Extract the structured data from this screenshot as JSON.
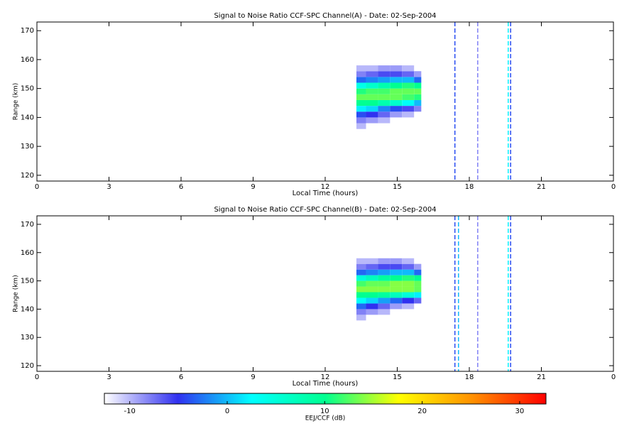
{
  "chart_data": [
    {
      "type": "heatmap",
      "title": "Signal to Noise Ratio CCF-SPC Channel(A) - Date: 02-Sep-2004",
      "xlabel": "Local Time (hours)",
      "ylabel": "Range (km)",
      "xlim": [
        0,
        24
      ],
      "xticks": [
        0,
        3,
        6,
        9,
        12,
        15,
        18,
        21,
        {
          "value": 24,
          "label": "0"
        }
      ],
      "ylim": [
        118,
        173
      ],
      "yticks": [
        120,
        130,
        140,
        150,
        160,
        170
      ],
      "xbins": [
        13.3,
        13.7,
        14.2,
        14.7,
        15.2,
        15.7,
        16.0
      ],
      "ybins": [
        136,
        138,
        140,
        142,
        144,
        146,
        148,
        150,
        152,
        154,
        156,
        158
      ],
      "z": [
        [
          -10,
          null,
          null,
          null,
          null,
          null
        ],
        [
          -8,
          -9,
          -10,
          null,
          null,
          null
        ],
        [
          -4,
          -5,
          -7,
          -9,
          -10,
          null
        ],
        [
          2,
          1,
          -2,
          -4,
          -6,
          -8
        ],
        [
          10,
          10,
          8,
          6,
          3,
          0
        ],
        [
          13,
          13,
          13,
          13,
          12,
          11
        ],
        [
          11,
          12,
          12,
          13,
          13,
          13
        ],
        [
          4,
          6,
          8,
          10,
          11,
          10
        ],
        [
          -3,
          -2,
          -1,
          0,
          0,
          -3
        ],
        [
          -8,
          -7,
          -6,
          -6,
          -7,
          -9
        ],
        [
          -10,
          -10,
          -9,
          -9,
          -10,
          null
        ]
      ],
      "streaks": {
        "x": [
          17.4,
          18.35,
          19.62,
          19.72
        ],
        "values": [
          -4,
          -8,
          2,
          -4
        ]
      }
    },
    {
      "type": "heatmap",
      "title": "Signal to Noise Ratio CCF-SPC Channel(B) - Date: 02-Sep-2004",
      "xlabel": "Local Time (hours)",
      "ylabel": "Range (km)",
      "xlim": [
        0,
        24
      ],
      "xticks": [
        0,
        3,
        6,
        9,
        12,
        15,
        18,
        21,
        {
          "value": 24,
          "label": "0"
        }
      ],
      "ylim": [
        118,
        173
      ],
      "yticks": [
        120,
        130,
        140,
        150,
        160,
        170
      ],
      "xbins": [
        13.3,
        13.7,
        14.2,
        14.7,
        15.2,
        15.7,
        16.0
      ],
      "ybins": [
        136,
        138,
        140,
        142,
        144,
        146,
        148,
        150,
        152,
        154,
        156,
        158
      ],
      "z": [
        [
          -10,
          null,
          null,
          null,
          null,
          null
        ],
        [
          -8,
          -9,
          -10,
          null,
          null,
          null
        ],
        [
          -3,
          -5,
          -7,
          -9,
          -10,
          null
        ],
        [
          3,
          1,
          -1,
          -3,
          -5,
          -7
        ],
        [
          10,
          10,
          9,
          7,
          5,
          2
        ],
        [
          14,
          14,
          14,
          14,
          14,
          13
        ],
        [
          12,
          13,
          13,
          14,
          14,
          13
        ],
        [
          5,
          7,
          9,
          10,
          11,
          10
        ],
        [
          -3,
          -2,
          -1,
          0,
          0,
          -3
        ],
        [
          -8,
          -7,
          -6,
          -6,
          -7,
          -9
        ],
        [
          -10,
          -10,
          -9,
          -9,
          -10,
          null
        ]
      ],
      "streaks": {
        "x": [
          17.4,
          17.55,
          18.35,
          19.62,
          19.72
        ],
        "values": [
          -4,
          0,
          -8,
          2,
          -4
        ]
      }
    },
    {
      "type": "colorbar",
      "xlabel": "EEJ/CCF (dB)",
      "xlim": [
        -12.6,
        32.7
      ],
      "xticks": [
        -10,
        0,
        10,
        20,
        30
      ],
      "colorscale": [
        "#ffffff",
        "#3030f0",
        "#00ffff",
        "#00ff90",
        "#ffff00",
        "#ff9000",
        "#ff0000"
      ]
    }
  ]
}
